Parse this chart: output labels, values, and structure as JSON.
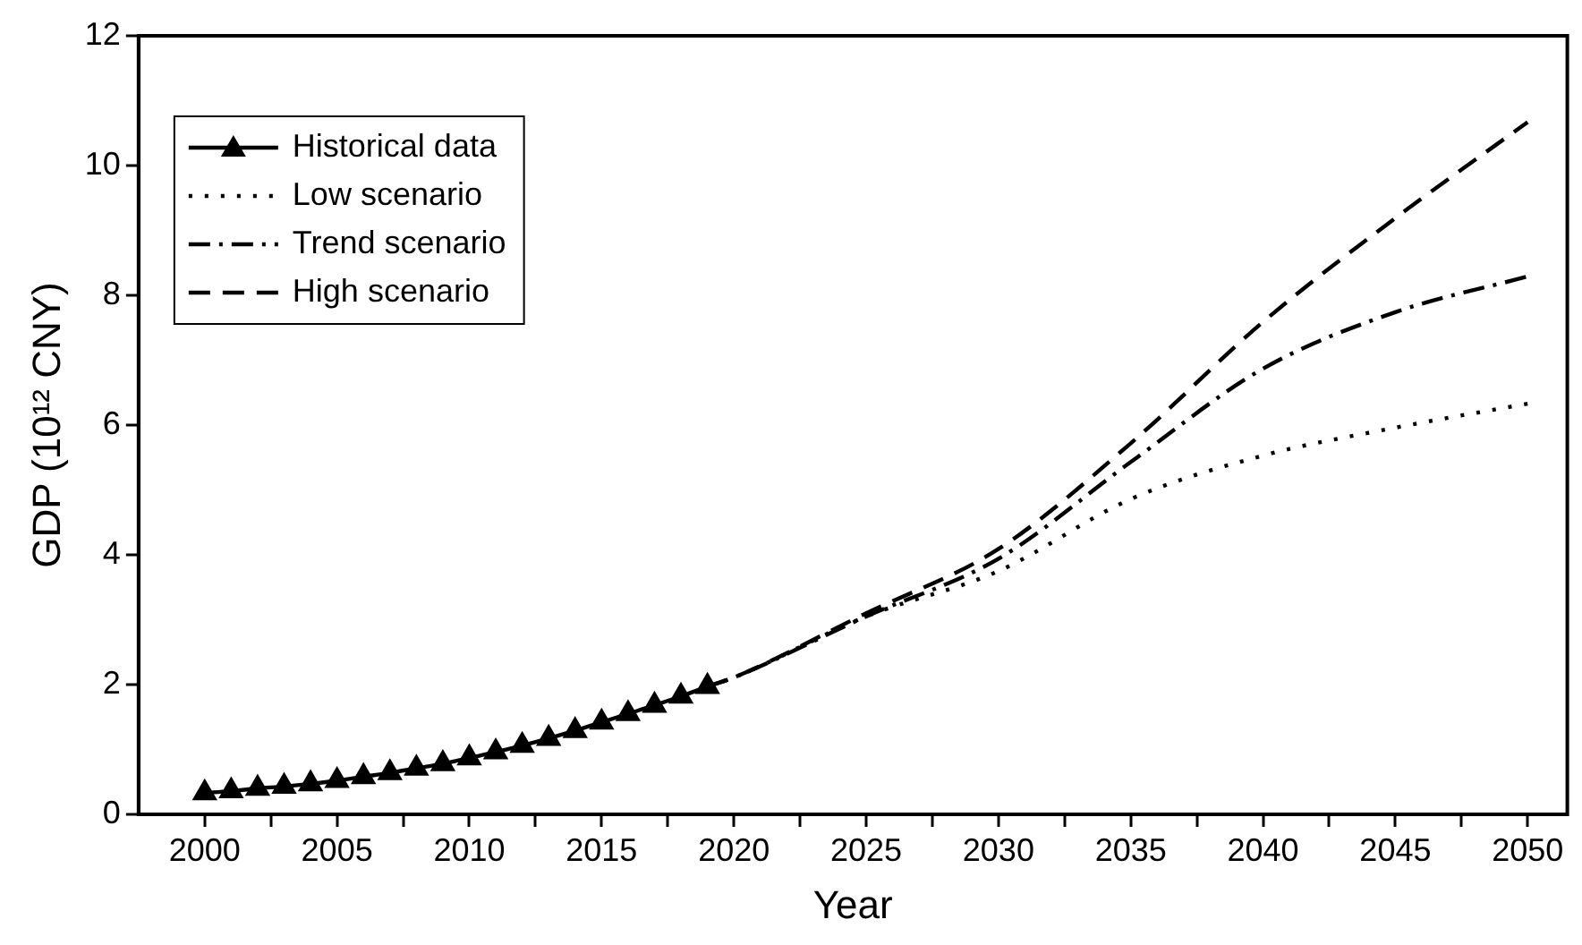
{
  "chart_data": {
    "type": "line",
    "xlabel": "Year",
    "ylabel": "GDP (10¹² CNY)",
    "xlim": [
      1997.5,
      2051.5
    ],
    "ylim": [
      0,
      12
    ],
    "xticks": [
      2000,
      {
        "value": 2002.5,
        "label": null
      },
      2005,
      {
        "value": 2007.5,
        "label": null
      },
      2010,
      {
        "value": 2012.5,
        "label": null
      },
      2015,
      {
        "value": 2017.5,
        "label": null
      },
      2020,
      {
        "value": 2022.5,
        "label": null
      },
      2025,
      {
        "value": 2027.5,
        "label": null
      },
      2030,
      {
        "value": 2032.5,
        "label": null
      },
      2035,
      {
        "value": 2037.5,
        "label": null
      },
      2040,
      {
        "value": 2042.5,
        "label": null
      },
      2045,
      {
        "value": 2047.5,
        "label": null
      },
      2050
    ],
    "yticks": [
      0,
      2,
      4,
      6,
      8,
      10,
      12
    ],
    "grid": false,
    "legend": "top left",
    "series": [
      {
        "name": "Historical data",
        "color": "#000000",
        "marker": "triangle",
        "line_style": "solid",
        "x": [
          2000,
          2001,
          2002,
          2003,
          2004,
          2005,
          2006,
          2007,
          2008,
          2009,
          2010,
          2011,
          2012,
          2013,
          2014,
          2015,
          2016,
          2017,
          2018,
          2019
        ],
        "values": [
          0.33,
          0.36,
          0.4,
          0.43,
          0.47,
          0.52,
          0.58,
          0.64,
          0.71,
          0.78,
          0.87,
          0.96,
          1.06,
          1.17,
          1.29,
          1.42,
          1.55,
          1.68,
          1.82,
          1.97
        ]
      },
      {
        "name": "Low scenario",
        "color": "#000000",
        "marker": "none",
        "line_style": "dotted",
        "x": [
          2019,
          2020,
          2025,
          2030,
          2035,
          2040,
          2045,
          2050
        ],
        "values": [
          1.97,
          2.11,
          3.05,
          3.75,
          4.86,
          5.53,
          5.96,
          6.33
        ]
      },
      {
        "name": "Trend scenario",
        "color": "#000000",
        "marker": "none",
        "line_style": "dashdot",
        "x": [
          2019,
          2020,
          2025,
          2030,
          2035,
          2040,
          2045,
          2050
        ],
        "values": [
          1.97,
          2.11,
          3.05,
          3.94,
          5.43,
          6.87,
          7.74,
          8.29
        ]
      },
      {
        "name": "High scenario",
        "color": "#000000",
        "marker": "none",
        "line_style": "dashed",
        "x": [
          2019,
          2020,
          2025,
          2030,
          2035,
          2040,
          2045,
          2050
        ],
        "values": [
          1.97,
          2.11,
          3.1,
          4.09,
          5.72,
          7.59,
          9.19,
          10.67
        ]
      }
    ]
  }
}
